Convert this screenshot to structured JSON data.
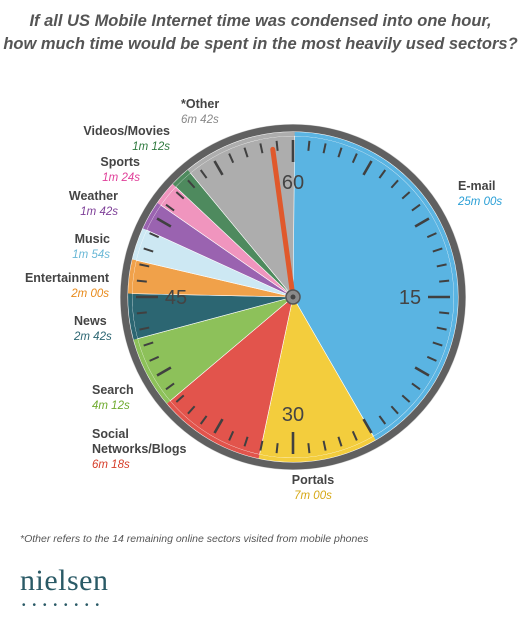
{
  "title_line1": "If all US Mobile Internet time was condensed into one hour,",
  "title_line2": "how much time would be spent in the most heavily used sectors?",
  "footnote": "*Other refers to the 14 remaining online sectors visited from mobile phones",
  "brand": "nielsen",
  "brand_dots": "••••••••",
  "colors": {
    "label_text": "#444444",
    "dial_ring": "#606060",
    "tick": "#404040",
    "hand": "#e0592c"
  },
  "chart_data": {
    "type": "pie",
    "unit": "minutes",
    "total_minutes": 60,
    "dial_labels": [
      "60",
      "15",
      "30",
      "45"
    ],
    "slices": [
      {
        "label": "E-mail",
        "value_text": "25m 00s",
        "minutes": 25.0,
        "color": "#5ab4e2",
        "value_color": "#2a9fd6"
      },
      {
        "label": "Portals",
        "value_text": "7m 00s",
        "minutes": 7.0,
        "color": "#f3cd3d",
        "value_color": "#d6a816"
      },
      {
        "label": "Social\nNetworks/Blogs",
        "value_text": "6m 18s",
        "minutes": 6.3,
        "color": "#e2544c",
        "value_color": "#d63e2a"
      },
      {
        "label": "Search",
        "value_text": "4m 12s",
        "minutes": 4.2,
        "color": "#8dc15a",
        "value_color": "#6fab2e"
      },
      {
        "label": "News",
        "value_text": "2m 42s",
        "minutes": 2.7,
        "color": "#2c6672",
        "value_color": "#2c6672"
      },
      {
        "label": "Entertainment",
        "value_text": "2m 00s",
        "minutes": 2.0,
        "color": "#f0a14a",
        "value_color": "#e88a1a"
      },
      {
        "label": "Music",
        "value_text": "1m 54s",
        "minutes": 1.9,
        "color": "#cde8f3",
        "value_color": "#6ab8d6"
      },
      {
        "label": "Weather",
        "value_text": "1m 42s",
        "minutes": 1.7,
        "color": "#9a63b0",
        "value_color": "#7e3f98"
      },
      {
        "label": "Sports",
        "value_text": "1m 24s",
        "minutes": 1.4,
        "color": "#f095be",
        "value_color": "#e0409a"
      },
      {
        "label": "Videos/Movies",
        "value_text": "1m 12s",
        "minutes": 1.2,
        "color": "#4e8a5e",
        "value_color": "#2f7a3f"
      },
      {
        "label": "*Other",
        "value_text": "6m 42s",
        "minutes": 6.7,
        "color": "#adadad",
        "value_color": "#888888"
      }
    ]
  }
}
